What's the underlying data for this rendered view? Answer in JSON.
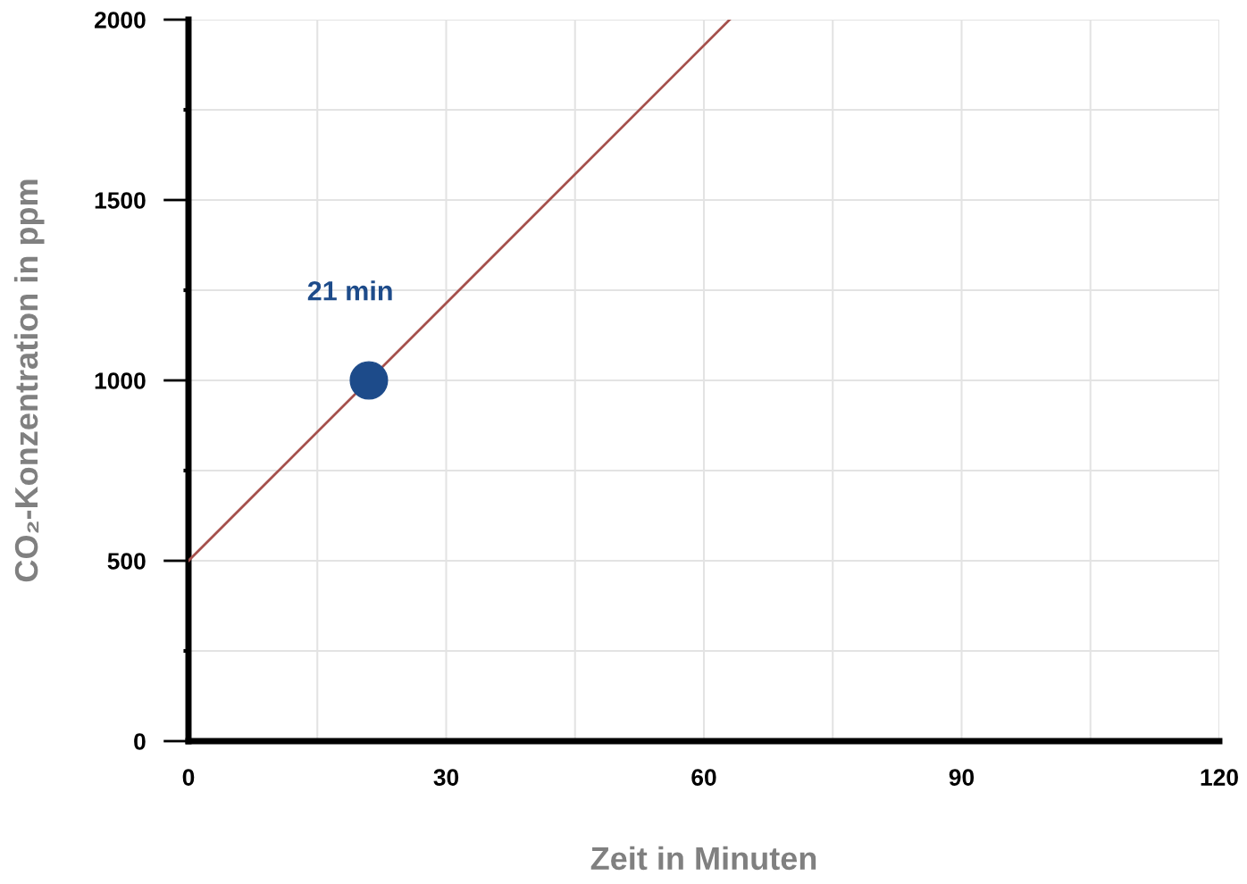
{
  "chart_data": {
    "type": "line",
    "xlabel": "Zeit in Minuten",
    "ylabel": "CO₂-Konzentration in ppm",
    "xlim": [
      0,
      120
    ],
    "ylim": [
      0,
      2000
    ],
    "xticks": [
      0,
      {
        "value": 15,
        "label": null
      },
      30,
      {
        "value": 45,
        "label": null
      },
      60,
      {
        "value": 75,
        "label": null
      },
      90,
      {
        "value": 105,
        "label": null
      },
      120
    ],
    "yticks": [
      0,
      {
        "value": 250,
        "label": null
      },
      500,
      {
        "value": 750,
        "label": null
      },
      1000,
      {
        "value": 1250,
        "label": null
      },
      1500,
      {
        "value": 1750,
        "label": null
      },
      2000
    ],
    "grid": true,
    "marker": "none",
    "line_style": "solid",
    "series": [
      {
        "color": "#a5504c",
        "x": [
          0,
          63
        ],
        "values": [
          500,
          2000
        ]
      },
      {
        "type": "scatter",
        "color": "#1d4b8a",
        "x": [
          21
        ],
        "values": [
          1000
        ],
        "marker": "circle"
      }
    ],
    "annotations": [
      {
        "text": "21 min",
        "x": 21,
        "y": 1000
      }
    ]
  }
}
